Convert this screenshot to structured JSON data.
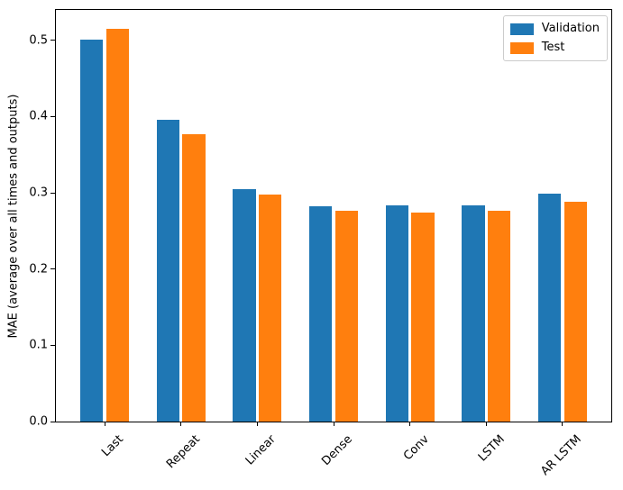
{
  "chart_data": {
    "type": "bar",
    "title": "",
    "xlabel": "",
    "ylabel": "MAE (average over all times and outputs)",
    "categories": [
      "Last",
      "Repeat",
      "Linear",
      "Dense",
      "Conv",
      "LSTM",
      "AR LSTM"
    ],
    "series": [
      {
        "name": "Validation",
        "color": "#1f77b4",
        "values": [
          0.501,
          0.396,
          0.305,
          0.282,
          0.283,
          0.284,
          0.299
        ]
      },
      {
        "name": "Test",
        "color": "#ff7f0e",
        "values": [
          0.515,
          0.377,
          0.298,
          0.276,
          0.274,
          0.277,
          0.288
        ]
      }
    ],
    "ylim": [
      0,
      0.54
    ],
    "xlim": [
      -0.64,
      6.64
    ],
    "yticks": [
      0.0,
      0.1,
      0.2,
      0.3,
      0.4,
      0.5
    ],
    "ytick_labels": [
      "0.0",
      "0.1",
      "0.2",
      "0.3",
      "0.4",
      "0.5"
    ],
    "xtick_rotation_deg": 45,
    "bar_width": 0.3,
    "bar_offset": 0.17,
    "grid": false,
    "legend": {
      "position": "upper right",
      "entries": [
        "Validation",
        "Test"
      ]
    }
  },
  "style": {
    "axis_color": "#000000",
    "background": "#ffffff",
    "legend_border": "#cccccc",
    "validation_color": "#1f77b4",
    "test_color": "#ff7f0e"
  }
}
